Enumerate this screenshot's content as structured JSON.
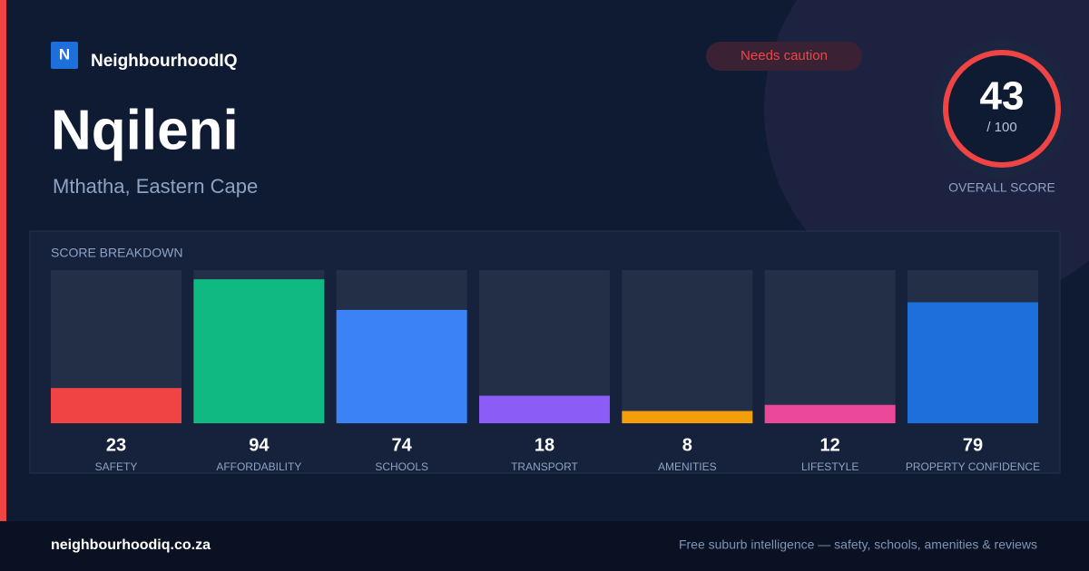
{
  "brand": {
    "logo_letter": "N",
    "name": "NeighbourhoodIQ"
  },
  "badge": "Needs caution",
  "title": "Nqileni",
  "location": "Mthatha, Eastern Cape",
  "score": {
    "value": "43",
    "max": "/ 100",
    "label": "OVERALL SCORE"
  },
  "chart_data": {
    "type": "bar",
    "title": "SCORE BREAKDOWN",
    "categories": [
      "SAFETY",
      "AFFORDABILITY",
      "SCHOOLS",
      "TRANSPORT",
      "AMENITIES",
      "LIFESTYLE",
      "PROPERTY CONFIDENCE"
    ],
    "values": [
      23,
      94,
      74,
      18,
      8,
      12,
      79
    ],
    "colors": [
      "#ef4444",
      "#10b981",
      "#3b82f6",
      "#8b5cf6",
      "#f59e0b",
      "#ec4899",
      "#1d6fdb"
    ],
    "ylim": [
      0,
      100
    ]
  },
  "footer": {
    "site": "neighbourhoodiq.co.za",
    "tagline": "Free suburb intelligence — safety, schools, amenities & reviews"
  }
}
